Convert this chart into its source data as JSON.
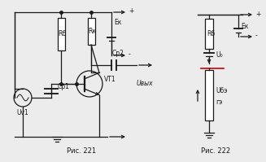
{
  "bg_color": "#ececec",
  "line_color": "#1a1a1a",
  "red_line_color": "#cc0000",
  "fig221_label": "Рис. 221",
  "fig222_label": "Рис. 222",
  "label_Rb1": "Rб",
  "label_Rk1": "Rк",
  "label_Ek1": "Ек",
  "label_Cp1": "Ср1",
  "label_Cp2": "Ср2",
  "label_VT1": "VT1",
  "label_Uv1": "Uv1",
  "label_Uvyx": "Uвых",
  "label_Rb2": "Rб",
  "label_Ek2": "Ек",
  "label_U0": "U₀",
  "label_Ube": "Uбэ",
  "label_ge": "гэ",
  "label_plus1": "+",
  "label_minus1": "-",
  "label_plus2": "+",
  "label_minus2": "-"
}
